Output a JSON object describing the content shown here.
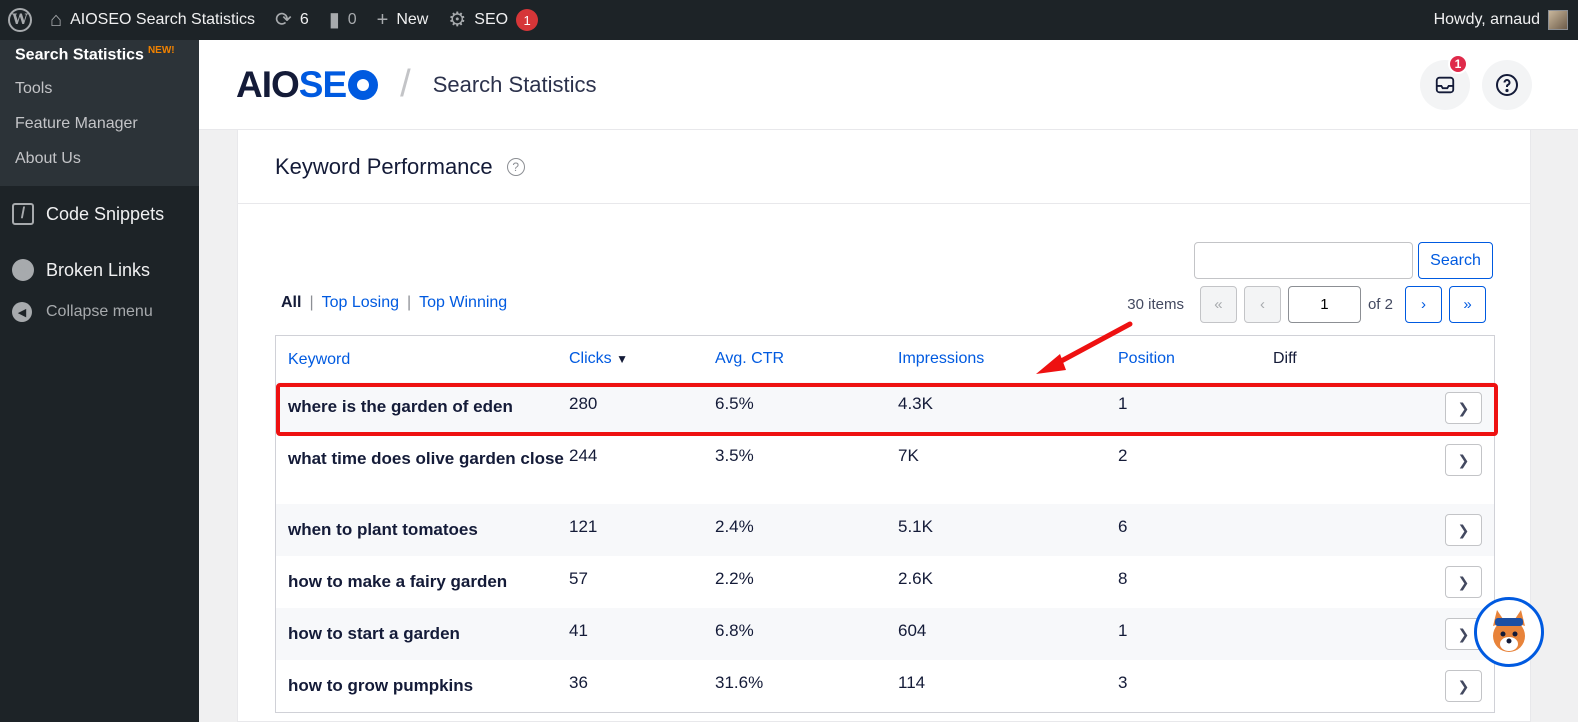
{
  "adminbar": {
    "site_name": "AIOSEO Search Statistics",
    "updates_count": "6",
    "comments_count": "0",
    "new_label": "New",
    "seo_label": "SEO",
    "seo_badge": "1",
    "howdy": "Howdy, arnaud"
  },
  "sidebar": {
    "submenu": [
      {
        "label": "Search Statistics",
        "badge": "NEW!"
      },
      {
        "label": "Tools"
      },
      {
        "label": "Feature Manager"
      },
      {
        "label": "About Us"
      }
    ],
    "menu": [
      {
        "label": "Code Snippets"
      },
      {
        "label": "Broken Links"
      }
    ],
    "collapse_label": "Collapse menu"
  },
  "header": {
    "logo_a": "AIO",
    "logo_b": "SE",
    "page_title": "Search Statistics",
    "notif_badge": "1"
  },
  "card": {
    "title": "Keyword Performance",
    "search_button": "Search",
    "search_value": "",
    "filters": {
      "all": "All",
      "losing": "Top Losing",
      "winning": "Top Winning"
    },
    "pager": {
      "items": "30 items",
      "first": "«",
      "prev": "‹",
      "page": "1",
      "of": "of 2",
      "next": "›",
      "last": "»"
    }
  },
  "table": {
    "headers": {
      "keyword": "Keyword",
      "clicks": "Clicks",
      "ctr": "Avg. CTR",
      "impressions": "Impressions",
      "position": "Position",
      "diff": "Diff"
    },
    "rows": [
      {
        "keyword": "where is the garden of eden",
        "clicks": "280",
        "ctr": "6.5%",
        "impressions": "4.3K",
        "position": "1"
      },
      {
        "keyword": "what time does olive garden close",
        "clicks": "244",
        "ctr": "3.5%",
        "impressions": "7K",
        "position": "2"
      },
      {
        "keyword": "when to plant tomatoes",
        "clicks": "121",
        "ctr": "2.4%",
        "impressions": "5.1K",
        "position": "6"
      },
      {
        "keyword": "how to make a fairy garden",
        "clicks": "57",
        "ctr": "2.2%",
        "impressions": "2.6K",
        "position": "8"
      },
      {
        "keyword": "how to start a garden",
        "clicks": "41",
        "ctr": "6.8%",
        "impressions": "604",
        "position": "1"
      },
      {
        "keyword": "how to grow pumpkins",
        "clicks": "36",
        "ctr": "31.6%",
        "impressions": "114",
        "position": "3"
      }
    ]
  },
  "colors": {
    "accent": "#005ae0",
    "highlight": "#ee1111",
    "admin": "#1d2327"
  }
}
